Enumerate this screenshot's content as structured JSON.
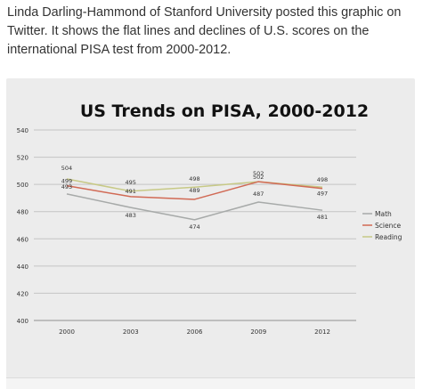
{
  "intro_text": "Linda Darling-Hammond of Stanford University posted this graphic on Twitter. It shows the flat lines and declines of U.S. scores on the international PISA test from 2000-2012.",
  "colors": {
    "Math": "#a7aaa9",
    "Science": "#d16a55",
    "Reading": "#c7c986"
  },
  "chart_data": {
    "type": "line",
    "title": "US Trends on PISA, 2000-2012",
    "x": [
      "2000",
      "2003",
      "2006",
      "2009",
      "2012"
    ],
    "yticks": [
      "400",
      "420",
      "440",
      "460",
      "480",
      "500",
      "520",
      "540"
    ],
    "ylim": [
      400,
      540
    ],
    "grid": true,
    "legend_position": "right",
    "series": [
      {
        "name": "Math",
        "values": [
          493,
          483,
          474,
          487,
          481
        ],
        "labels": [
          "493",
          "483",
          "474",
          "487",
          "481"
        ]
      },
      {
        "name": "Science",
        "values": [
          499,
          491,
          489,
          502,
          497
        ],
        "labels": [
          "499",
          "491",
          "489",
          "502",
          "497"
        ]
      },
      {
        "name": "Reading",
        "values": [
          504,
          495,
          498,
          502,
          498
        ],
        "labels": [
          "504",
          "495",
          "498",
          "502",
          "498"
        ]
      }
    ]
  }
}
